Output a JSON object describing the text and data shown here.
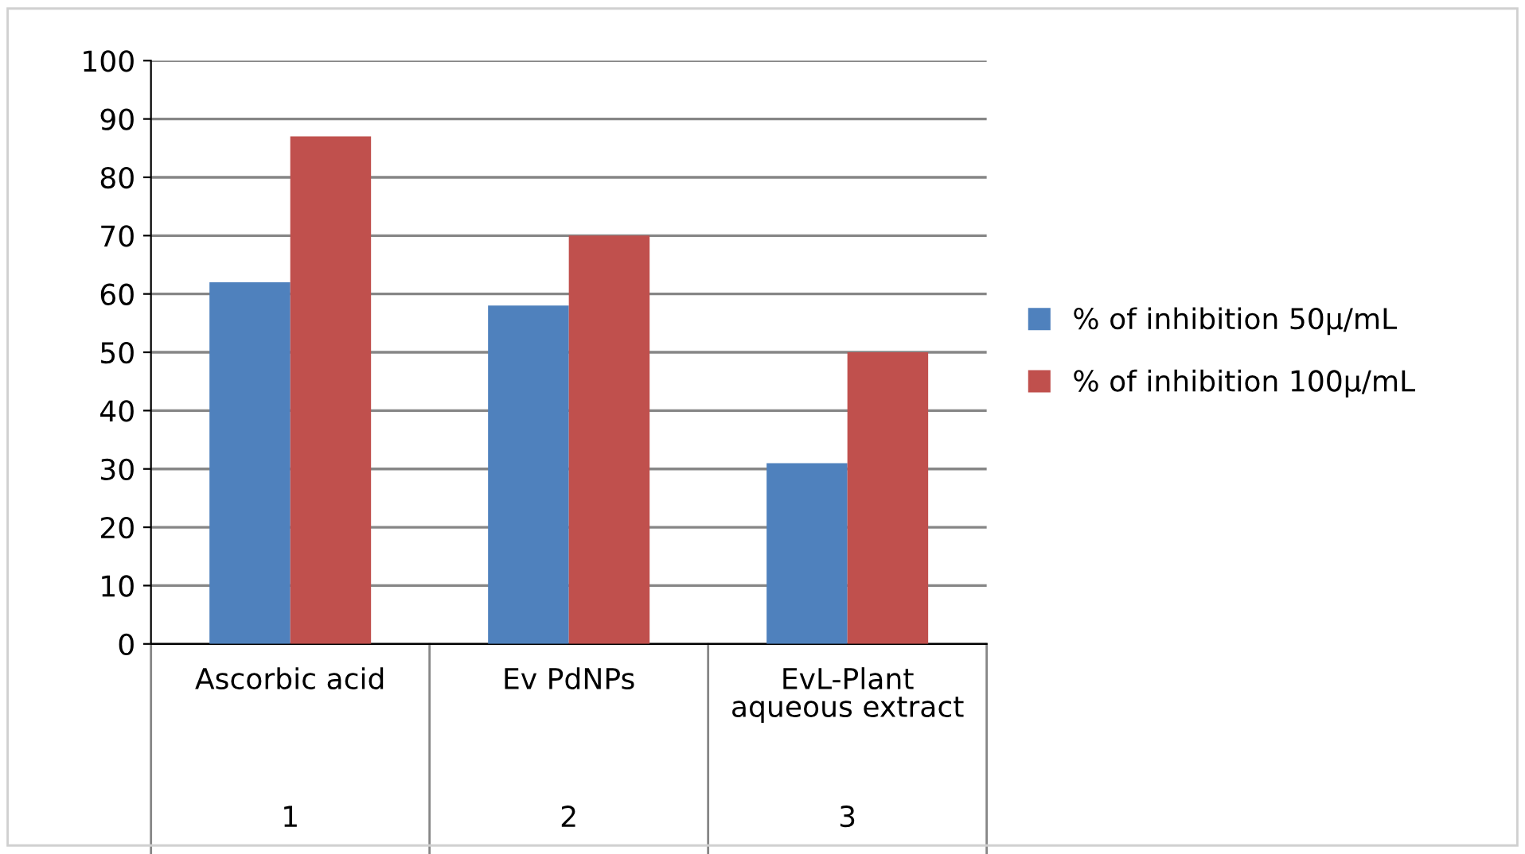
{
  "chart_data": {
    "type": "bar",
    "categories": [
      "Ascorbic acid",
      "Ev PdNPs",
      "EvL-Plant\naqueous extract"
    ],
    "series": [
      {
        "name": "% of inhibition 50μ/mL",
        "color": "#4f81bd",
        "values": [
          62,
          58,
          31
        ]
      },
      {
        "name": "% of inhibition 100μ/mL",
        "color": "#c0504d",
        "values": [
          87,
          70,
          50
        ]
      }
    ],
    "annotations": [
      "1",
      "2",
      "3"
    ],
    "ylim": [
      0,
      100
    ],
    "yticks": [
      0,
      10,
      20,
      30,
      40,
      50,
      60,
      70,
      80,
      90,
      100
    ],
    "grid": "y",
    "legend": "right"
  }
}
